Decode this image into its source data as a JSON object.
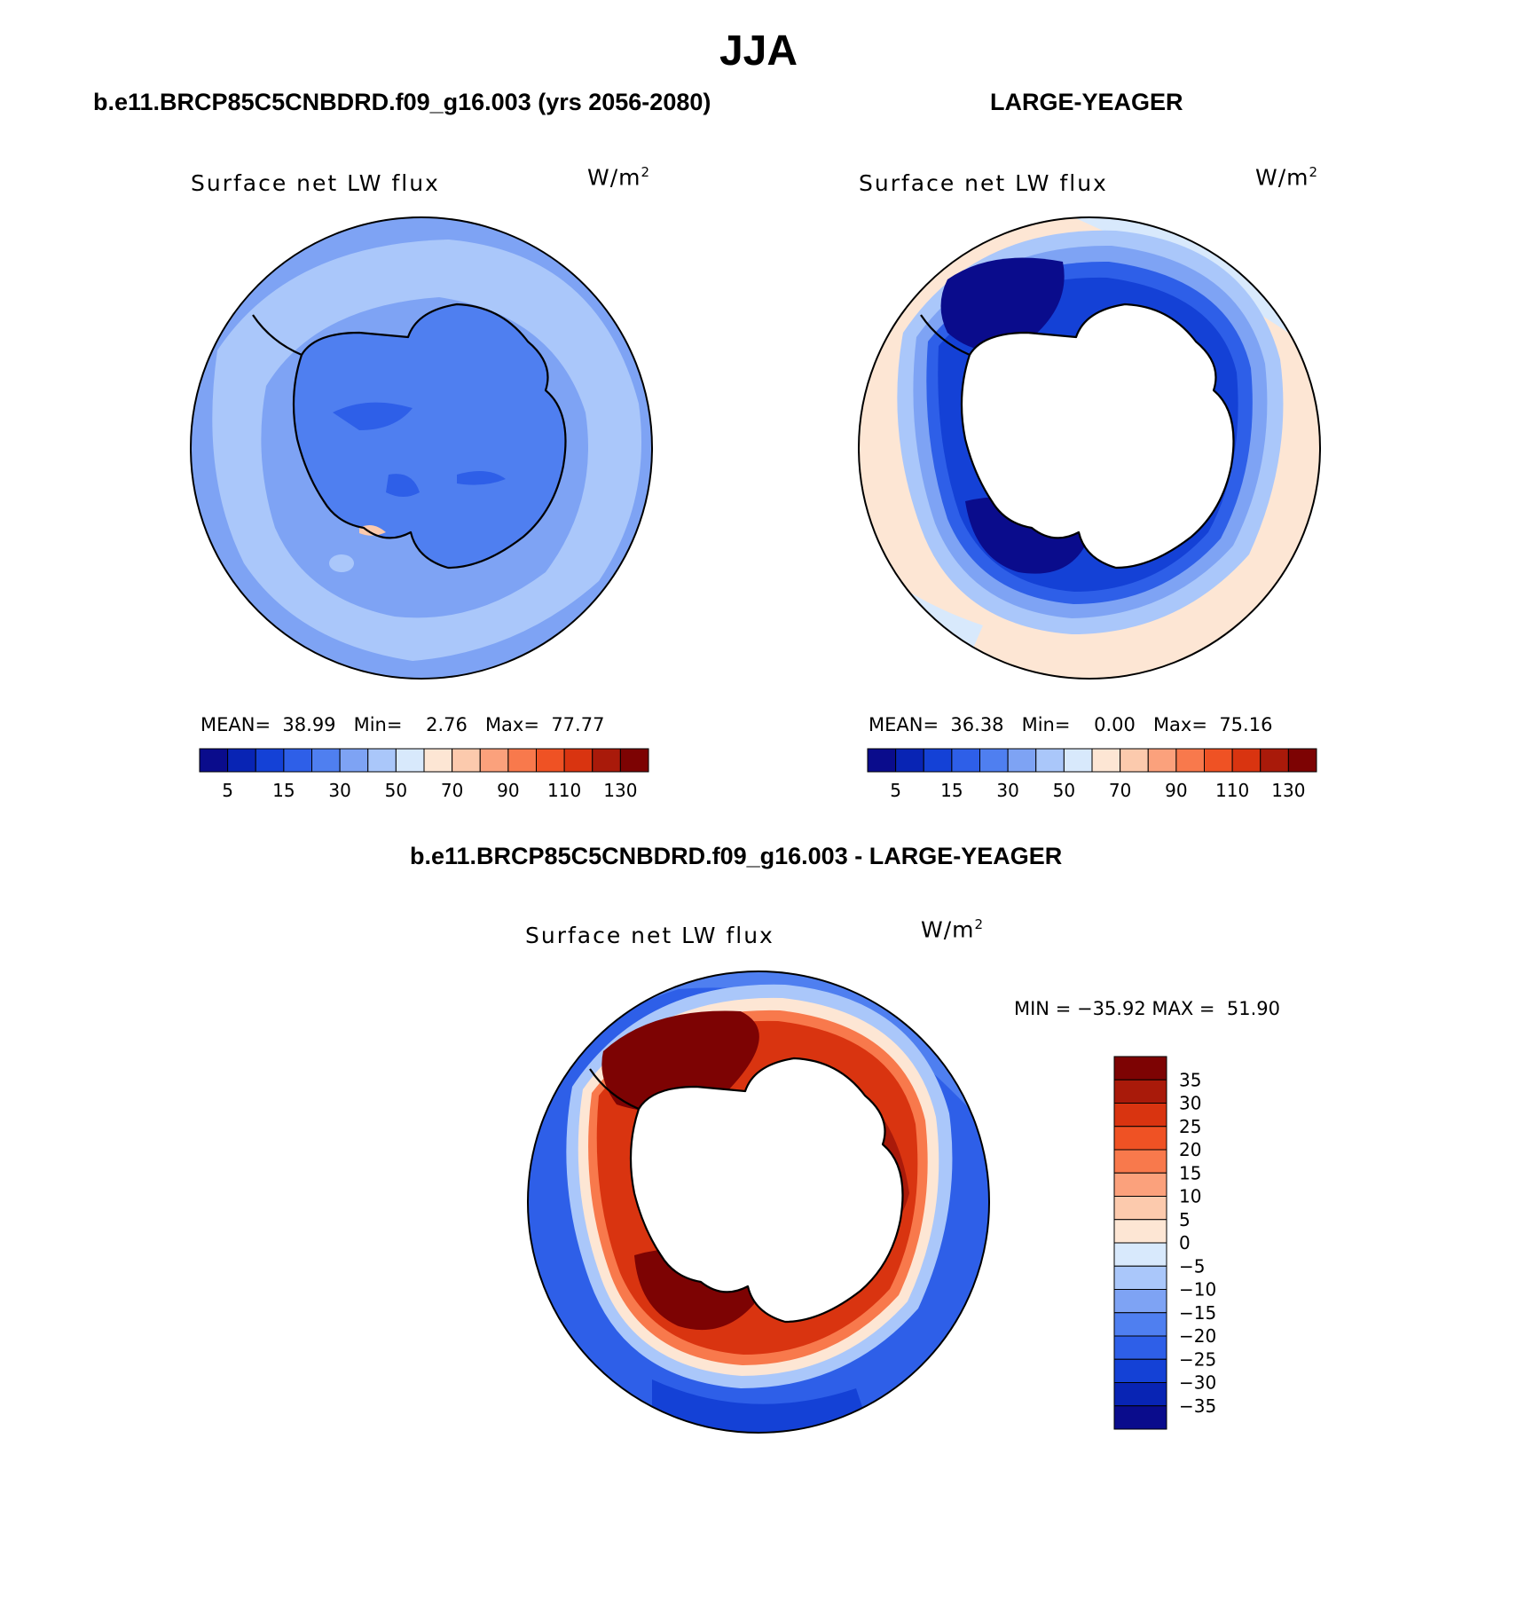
{
  "page": {
    "title": "JJA"
  },
  "panels": [
    {
      "title": "b.e11.BRCP85C5CNBDRD.f09_g16.003 (yrs 2056-2080)",
      "field": "Surface net LW flux",
      "unit": "W/m",
      "unit_exp": "2",
      "stats": {
        "mean_label": "MEAN=",
        "mean": "38.99",
        "min_label": "Min=",
        "min": "2.76",
        "max_label": "Max=",
        "max": "77.77"
      }
    },
    {
      "title": "LARGE-YEAGER",
      "field": "Surface net LW flux",
      "unit": "W/m",
      "unit_exp": "2",
      "stats": {
        "mean_label": "MEAN=",
        "mean": "36.38",
        "min_label": "Min=",
        "min": "0.00",
        "max_label": "Max=",
        "max": "75.16"
      }
    },
    {
      "title": "b.e11.BRCP85C5CNBDRD.f09_g16.003 - LARGE-YEAGER",
      "field": "Surface net LW flux",
      "unit": "W/m",
      "unit_exp": "2",
      "stats_line": "MIN = −35.92 MAX =  51.90"
    }
  ],
  "colorbar_abs": {
    "colors": [
      "#0a0c8c",
      "#0824b4",
      "#1441d6",
      "#2e5fe8",
      "#4f7ff0",
      "#7ea3f4",
      "#aac7fa",
      "#d8e9fc",
      "#fde6d4",
      "#fccaad",
      "#fba17c",
      "#f8794c",
      "#ef5224",
      "#d93410",
      "#a91a0a",
      "#7d0303"
    ],
    "labels": [
      "5",
      "15",
      "30",
      "50",
      "70",
      "90",
      "110",
      "130"
    ]
  },
  "colorbar_diff": {
    "colors": [
      "#7d0303",
      "#a91a0a",
      "#d93410",
      "#ef5224",
      "#f8794c",
      "#fba17c",
      "#fccaad",
      "#fde6d4",
      "#d8e9fc",
      "#aac7fa",
      "#7ea3f4",
      "#4f7ff0",
      "#2e5fe8",
      "#1441d6",
      "#0824b4",
      "#0a0c8c"
    ],
    "labels": [
      "35",
      "30",
      "25",
      "20",
      "15",
      "10",
      "5",
      "0",
      "−5",
      "−10",
      "−15",
      "−20",
      "−25",
      "−30",
      "−35"
    ]
  },
  "palette": {
    "ocean_light": "#aac7fa",
    "ocean_mid": "#7ea3f4",
    "ocean_dark": "#4f7ff0",
    "deep_blue": "#0a0c8c",
    "strong_blue": "#1441d6",
    "peach": "#fde6d4",
    "pale_blue": "#d8e9fc",
    "dark_red": "#a91a0a",
    "deepest_red": "#7d0303",
    "orange": "#ef5224",
    "coast": "#000000"
  }
}
